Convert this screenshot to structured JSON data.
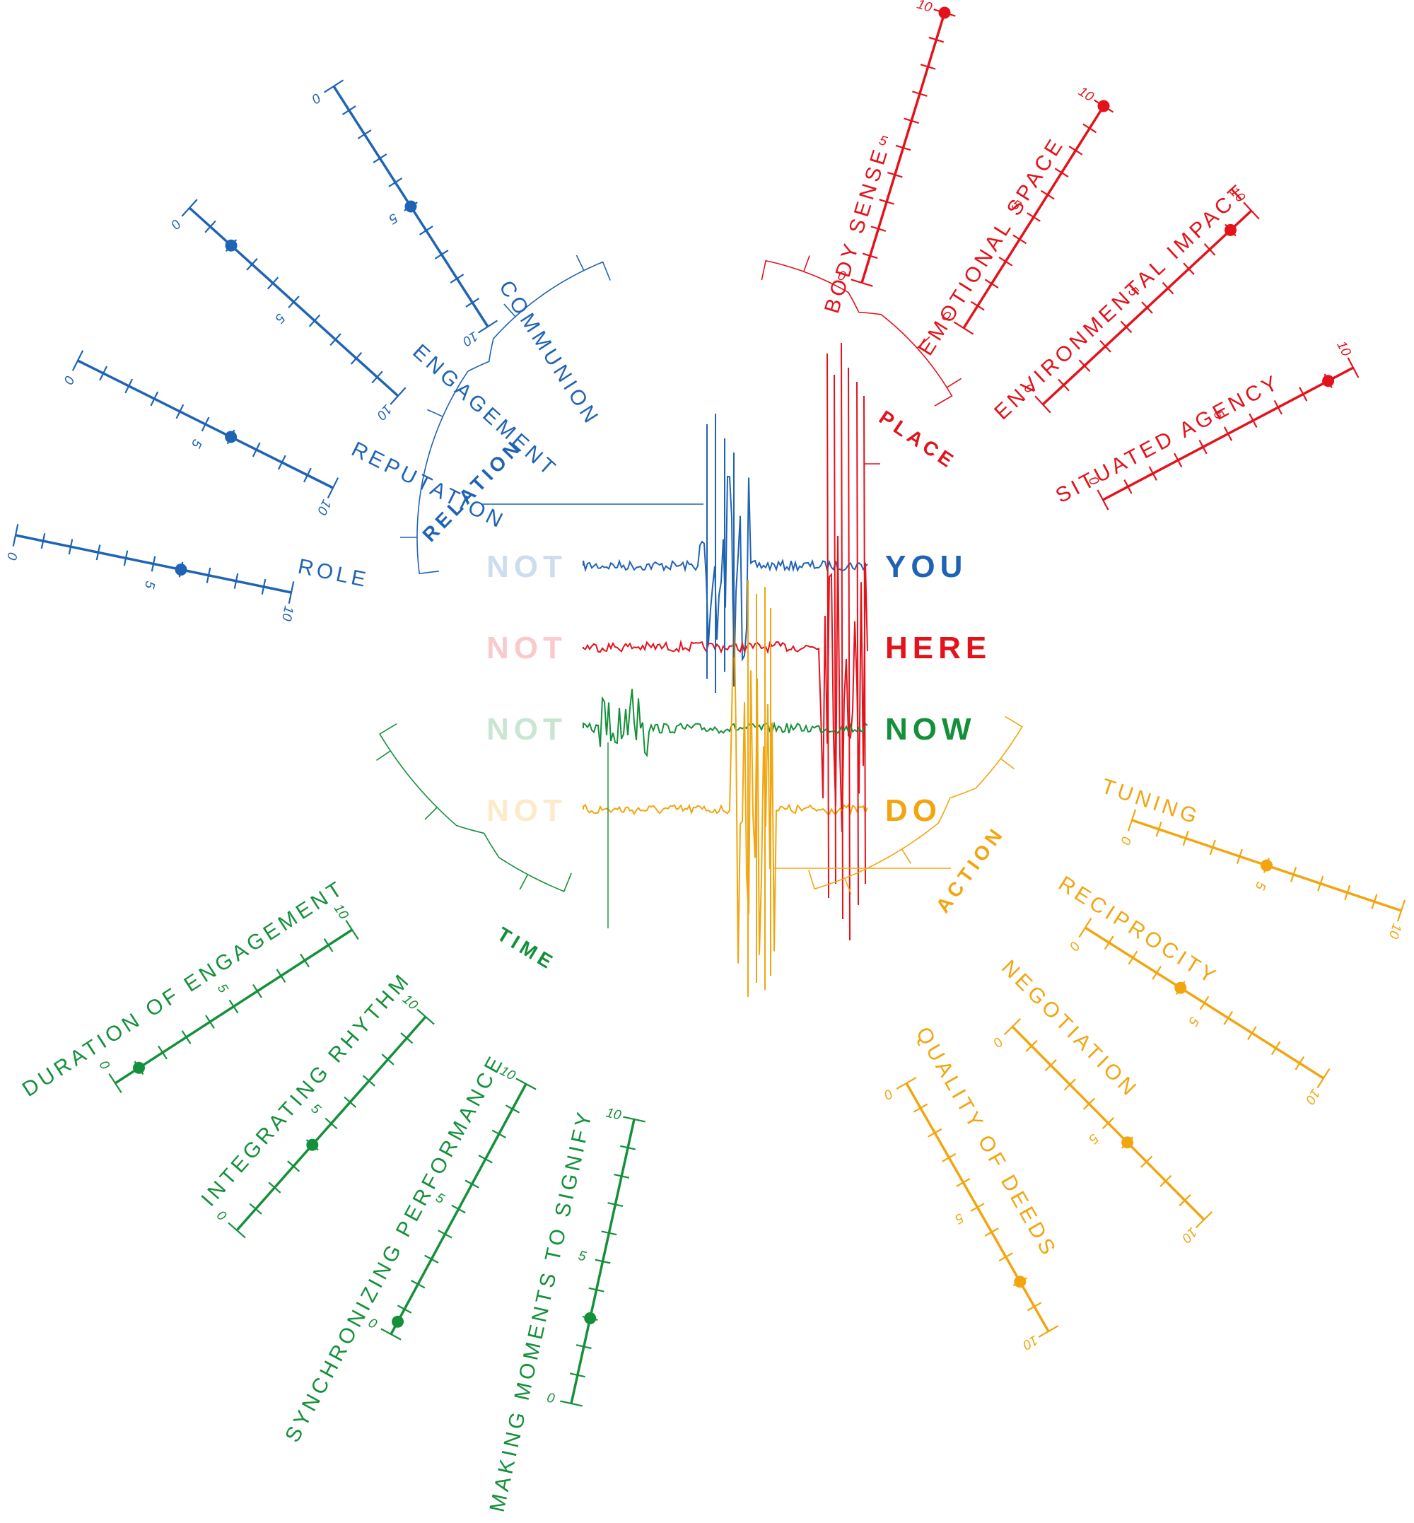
{
  "groups": [
    {
      "id": "relation",
      "label": "RELATION",
      "color": "#1f63b5",
      "word_left": "NOT",
      "word_right": "YOU",
      "scales": [
        {
          "label": "COMMUNION",
          "min": "0",
          "mid": "5",
          "max": "10",
          "value": 5
        },
        {
          "label": "ENGAGEMENT",
          "min": "0",
          "mid": "5",
          "max": "10",
          "value": 2
        },
        {
          "label": "REPUTATION",
          "min": "0",
          "mid": "5",
          "max": "10",
          "value": 6
        },
        {
          "label": "ROLE",
          "min": "0",
          "mid": "5",
          "max": "10",
          "value": 6
        }
      ]
    },
    {
      "id": "place",
      "label": "PLACE",
      "color": "#e3121b",
      "word_left": "NOT",
      "word_right": "HERE",
      "scales": [
        {
          "label": "BODY SENSE",
          "min": "0",
          "mid": "5",
          "max": "10",
          "value": 10
        },
        {
          "label": "EMOTIONAL SPACE",
          "min": "0",
          "mid": "5",
          "max": "10",
          "value": 10
        },
        {
          "label": "ENVIRONMENTAL IMPACT",
          "min": "0",
          "mid": "5",
          "max": "10",
          "value": 9
        },
        {
          "label": "SITUATED AGENCY",
          "min": "0",
          "mid": "5",
          "max": "10",
          "value": 9
        }
      ]
    },
    {
      "id": "time",
      "label": "TIME",
      "color": "#14903a",
      "word_left": "NOT",
      "word_right": "NOW",
      "scales": [
        {
          "label": "DURATION OF ENGAGEMENT",
          "min": "0",
          "mid": "5",
          "max": "10",
          "value": 1
        },
        {
          "label": "INTEGRATING RHYTHM",
          "min": "0",
          "mid": "5",
          "max": "10",
          "value": 4
        },
        {
          "label": "SYNCHRONIZING PERFORMANCE",
          "min": "0",
          "mid": "5",
          "max": "10",
          "value": 0.5
        },
        {
          "label": "MAKING MOMENTS TO SIGNIFY",
          "min": "0",
          "mid": "5",
          "max": "10",
          "value": 3
        }
      ]
    },
    {
      "id": "action",
      "label": "ACTION",
      "color": "#f2a50f",
      "word_left": "NOT",
      "word_right": "DO",
      "scales": [
        {
          "label": "TUNING",
          "min": "0",
          "mid": "5",
          "max": "10",
          "value": 5
        },
        {
          "label": "RECIPROCITY",
          "min": "0",
          "mid": "5",
          "max": "10",
          "value": 4
        },
        {
          "label": "NEGOTIATION",
          "min": "0",
          "mid": "5",
          "max": "10",
          "value": 6
        },
        {
          "label": "QUALITY OF DEEDS",
          "min": "0",
          "mid": "5",
          "max": "10",
          "value": 8
        }
      ]
    }
  ]
}
